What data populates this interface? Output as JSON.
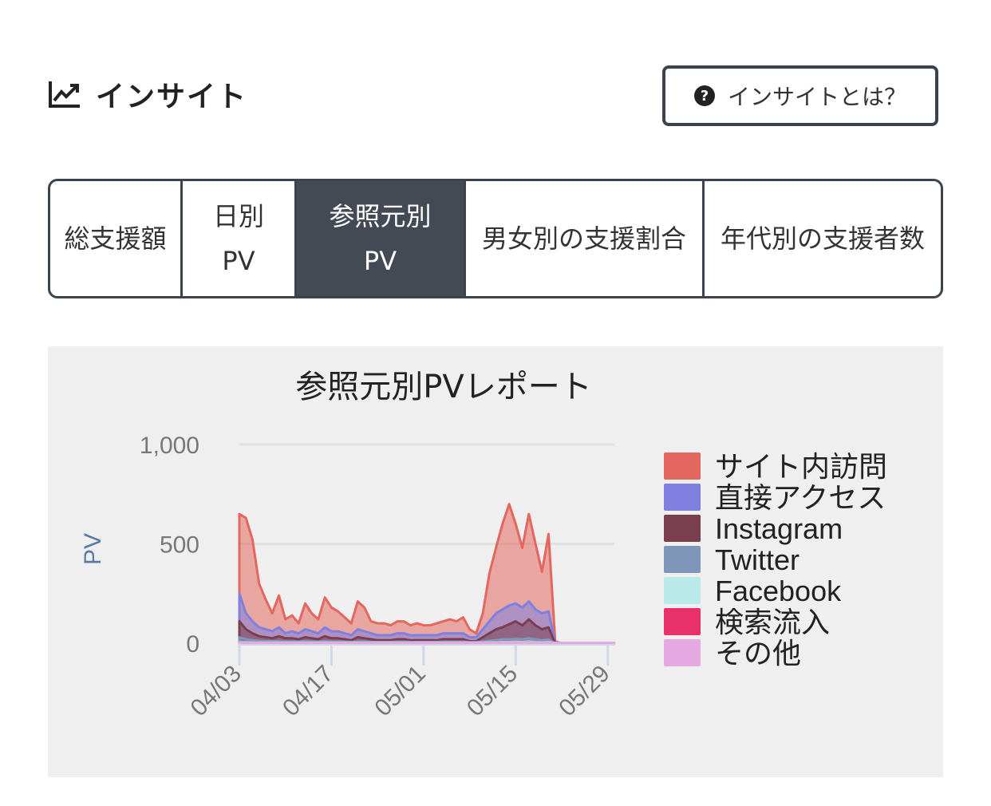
{
  "header": {
    "title": "インサイト",
    "icon": "chart-line-icon"
  },
  "help_button": {
    "label": "インサイトとは？",
    "icon": "question-circle-icon"
  },
  "tabs": [
    {
      "label": "総支援額",
      "active": false
    },
    {
      "label": "日別PV",
      "active": false
    },
    {
      "label": "参照元別PV",
      "active": true
    },
    {
      "label": "男女別の支援割合",
      "active": false
    },
    {
      "label": "年代別の支援者数",
      "active": false
    }
  ],
  "chart_data": {
    "type": "area",
    "title": "参照元別PVレポート",
    "ylabel": "PV",
    "xlabel": "",
    "ylim": [
      0,
      1000
    ],
    "yticks": [
      "0",
      "500",
      "1,000"
    ],
    "xticks": [
      "04/03",
      "04/17",
      "05/01",
      "05/15",
      "05/29"
    ],
    "x_start": "04/03",
    "x_end": "05/30",
    "grid": true,
    "legend_position": "right",
    "series": [
      {
        "name": "サイト内訪問",
        "color": "#e3675e",
        "values": [
          650,
          630,
          520,
          300,
          220,
          150,
          240,
          120,
          140,
          100,
          200,
          150,
          120,
          230,
          180,
          160,
          130,
          100,
          210,
          180,
          110,
          100,
          100,
          90,
          110,
          110,
          90,
          100,
          90,
          90,
          100,
          110,
          120,
          110,
          130,
          70,
          50,
          150,
          350,
          480,
          600,
          700,
          600,
          480,
          650,
          500,
          360,
          550,
          10,
          0,
          0,
          0,
          0,
          0,
          0,
          0,
          0,
          0
        ]
      },
      {
        "name": "直接アクセス",
        "color": "#7f7fe0",
        "values": [
          250,
          150,
          110,
          80,
          70,
          60,
          80,
          50,
          60,
          50,
          70,
          60,
          50,
          80,
          60,
          60,
          50,
          40,
          70,
          60,
          50,
          40,
          40,
          40,
          50,
          50,
          40,
          40,
          40,
          40,
          40,
          50,
          50,
          50,
          50,
          30,
          30,
          70,
          110,
          150,
          170,
          190,
          200,
          180,
          210,
          170,
          150,
          160,
          5,
          0,
          0,
          0,
          0,
          0,
          0,
          0,
          0,
          0
        ]
      },
      {
        "name": "Instagram",
        "color": "#7a3f4e",
        "values": [
          110,
          70,
          50,
          35,
          30,
          25,
          35,
          25,
          25,
          20,
          30,
          25,
          20,
          35,
          25,
          25,
          20,
          15,
          30,
          25,
          20,
          15,
          15,
          15,
          20,
          20,
          15,
          15,
          15,
          15,
          15,
          20,
          20,
          20,
          20,
          10,
          10,
          30,
          50,
          70,
          80,
          95,
          110,
          90,
          120,
          90,
          70,
          80,
          0,
          0,
          0,
          0,
          0,
          0,
          0,
          0,
          0,
          0
        ]
      },
      {
        "name": "Twitter",
        "color": "#7e96b8",
        "values": [
          30,
          20,
          15,
          12,
          10,
          10,
          10,
          8,
          8,
          8,
          10,
          8,
          8,
          10,
          8,
          8,
          8,
          6,
          8,
          8,
          6,
          6,
          6,
          6,
          8,
          8,
          6,
          6,
          6,
          6,
          6,
          8,
          8,
          8,
          8,
          5,
          5,
          8,
          12,
          15,
          20,
          20,
          22,
          20,
          25,
          20,
          15,
          18,
          0,
          0,
          0,
          0,
          0,
          0,
          0,
          0,
          0,
          0
        ]
      },
      {
        "name": "Facebook",
        "color": "#b9e9e8",
        "values": [
          5,
          4,
          3,
          3,
          3,
          3,
          3,
          3,
          3,
          3,
          3,
          3,
          3,
          3,
          3,
          3,
          3,
          3,
          3,
          3,
          3,
          3,
          3,
          3,
          3,
          3,
          3,
          3,
          3,
          3,
          3,
          3,
          3,
          3,
          3,
          3,
          3,
          3,
          4,
          5,
          6,
          6,
          7,
          6,
          8,
          6,
          5,
          6,
          0,
          0,
          0,
          0,
          0,
          0,
          0,
          0,
          0,
          0
        ]
      },
      {
        "name": "検索流入",
        "color": "#e8306a",
        "values": [
          3,
          2,
          2,
          2,
          2,
          2,
          2,
          2,
          2,
          2,
          2,
          2,
          2,
          2,
          2,
          2,
          2,
          2,
          2,
          2,
          2,
          2,
          2,
          2,
          2,
          2,
          2,
          2,
          2,
          2,
          2,
          2,
          2,
          2,
          2,
          2,
          2,
          2,
          2,
          3,
          3,
          3,
          3,
          3,
          3,
          3,
          3,
          3,
          0,
          0,
          0,
          0,
          0,
          0,
          0,
          0,
          0,
          0
        ]
      },
      {
        "name": "その他",
        "color": "#e5a8e0",
        "values": [
          2,
          2,
          2,
          2,
          2,
          2,
          2,
          2,
          2,
          2,
          2,
          2,
          2,
          2,
          2,
          2,
          2,
          2,
          2,
          2,
          2,
          2,
          2,
          2,
          2,
          2,
          2,
          2,
          2,
          2,
          2,
          2,
          2,
          2,
          2,
          2,
          2,
          2,
          2,
          2,
          2,
          2,
          2,
          2,
          2,
          2,
          2,
          2,
          2,
          2,
          2,
          2,
          2,
          2,
          2,
          2,
          2,
          2
        ]
      }
    ]
  }
}
